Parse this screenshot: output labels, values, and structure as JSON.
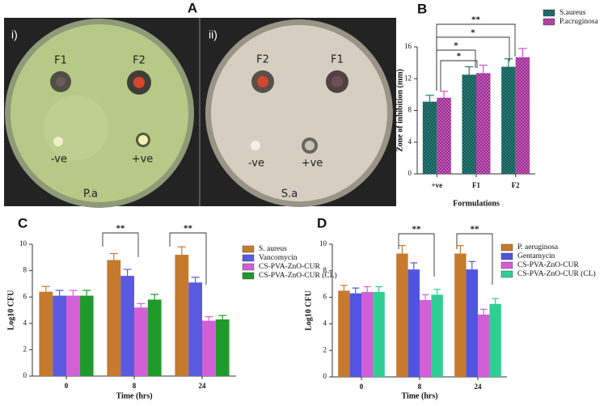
{
  "panels": {
    "a": "A",
    "b": "B",
    "c": "C",
    "d": "D"
  },
  "photos": [
    {
      "label": "i)",
      "spots": [
        "F1",
        "F2",
        "-ve",
        "+ve"
      ],
      "caption": "P.a"
    },
    {
      "label": "ii)",
      "spots": [
        "F2",
        "F1",
        "-ve",
        "+ve"
      ],
      "caption": "S.a"
    }
  ],
  "chart_data": [
    {
      "type": "bar",
      "x_label": "Formulations",
      "y_label": "Zone of inhibition (mm)",
      "categories": [
        "+ve",
        "F1",
        "F2"
      ],
      "series": [
        {
          "name": "S.aureus",
          "color": "#1f7f7a",
          "values": [
            9.1,
            12.5,
            13.5
          ],
          "errors": [
            0.8,
            1.0,
            1.0
          ]
        },
        {
          "name": "P.acruginosa",
          "color": "#d44fc8",
          "values": [
            9.6,
            12.7,
            14.7
          ],
          "errors": [
            0.8,
            1.0,
            1.1
          ]
        }
      ],
      "ylim": [
        0,
        16
      ],
      "yticks": [
        0,
        4,
        8,
        12,
        16
      ],
      "pattern": true,
      "annotations": [
        "**",
        "*",
        "*",
        "*"
      ]
    },
    {
      "type": "bar",
      "x_label": "Time (hrs)",
      "y_label": "Log10 CFU",
      "categories": [
        "0",
        "8",
        "24"
      ],
      "series": [
        {
          "name": "S. aureus",
          "color": "#c67a2e",
          "values": [
            6.4,
            8.8,
            9.2
          ],
          "errors": [
            0.4,
            0.5,
            0.6
          ]
        },
        {
          "name": "Vancomycin",
          "color": "#5a5ae0",
          "values": [
            6.1,
            7.6,
            7.1
          ],
          "errors": [
            0.4,
            0.5,
            0.4
          ]
        },
        {
          "name": "CS-PVA-ZnO-CUR",
          "color": "#d160d6",
          "values": [
            6.1,
            5.2,
            4.2
          ],
          "errors": [
            0.4,
            0.3,
            0.3
          ]
        },
        {
          "name": "CS-PVA-ZnO-CUR (CL)",
          "color": "#1f9a2a",
          "values": [
            6.1,
            5.8,
            4.3
          ],
          "errors": [
            0.4,
            0.4,
            0.3
          ]
        }
      ],
      "ylim": [
        0,
        10
      ],
      "yticks": [
        0,
        2,
        4,
        6,
        8,
        10
      ],
      "pattern": false,
      "annotations": [
        "**",
        "**"
      ]
    },
    {
      "type": "bar",
      "x_label": "Time (hrs)",
      "y_label": "Log10 CFU",
      "categories": [
        "0",
        "8",
        "24"
      ],
      "series": [
        {
          "name": "P. aeruginosa",
          "color": "#c67a2e",
          "values": [
            6.5,
            9.3,
            9.3
          ],
          "errors": [
            0.4,
            0.6,
            0.6
          ]
        },
        {
          "name": "Gentamycin",
          "color": "#4f55e0",
          "values": [
            6.3,
            8.1,
            8.1
          ],
          "errors": [
            0.4,
            0.5,
            0.6
          ]
        },
        {
          "name": "CS-PVA-ZnO-CUR",
          "color": "#d160d6",
          "values": [
            6.4,
            5.8,
            4.7
          ],
          "errors": [
            0.4,
            0.4,
            0.4
          ]
        },
        {
          "name": "CS-PVA-ZnO-CUR (CL)",
          "color": "#2fcf93",
          "values": [
            6.4,
            6.2,
            5.5
          ],
          "errors": [
            0.4,
            0.4,
            0.4
          ]
        }
      ],
      "ylim": [
        0,
        10
      ],
      "yticks": [
        0,
        2,
        4,
        6,
        8,
        10
      ],
      "pattern": false,
      "annotations": [
        "**",
        "**"
      ]
    }
  ]
}
